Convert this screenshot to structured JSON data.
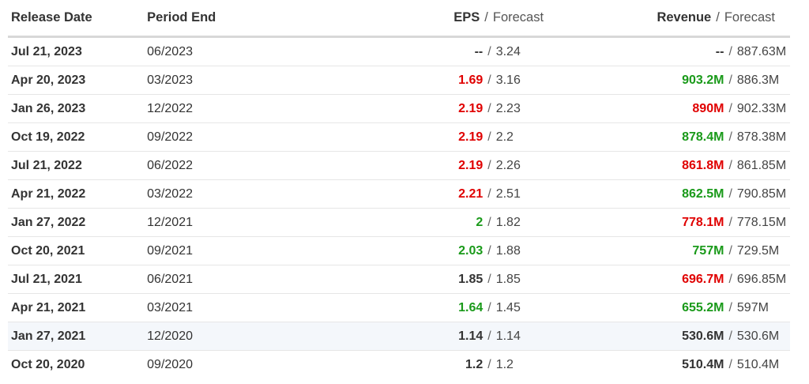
{
  "columns": {
    "release_date": "Release Date",
    "period_end": "Period End",
    "eps": "EPS",
    "revenue": "Revenue",
    "separator": "/",
    "forecast": "Forecast"
  },
  "colors": {
    "beat": "#1a9a1a",
    "miss": "#e00000",
    "neutral": "#333333",
    "highlight_row": "#f4f7fb"
  },
  "rows": [
    {
      "release_date": "Jul 21, 2023",
      "period_end": "06/2023",
      "eps_actual": "--",
      "eps_forecast": "3.24",
      "eps_status": "neutral",
      "rev_actual": "--",
      "rev_forecast": "887.63M",
      "rev_status": "neutral",
      "highlight": false
    },
    {
      "release_date": "Apr 20, 2023",
      "period_end": "03/2023",
      "eps_actual": "1.69",
      "eps_forecast": "3.16",
      "eps_status": "miss",
      "rev_actual": "903.2M",
      "rev_forecast": "886.3M",
      "rev_status": "beat",
      "highlight": false
    },
    {
      "release_date": "Jan 26, 2023",
      "period_end": "12/2022",
      "eps_actual": "2.19",
      "eps_forecast": "2.23",
      "eps_status": "miss",
      "rev_actual": "890M",
      "rev_forecast": "902.33M",
      "rev_status": "miss",
      "highlight": false
    },
    {
      "release_date": "Oct 19, 2022",
      "period_end": "09/2022",
      "eps_actual": "2.19",
      "eps_forecast": "2.2",
      "eps_status": "miss",
      "rev_actual": "878.4M",
      "rev_forecast": "878.38M",
      "rev_status": "beat",
      "highlight": false
    },
    {
      "release_date": "Jul 21, 2022",
      "period_end": "06/2022",
      "eps_actual": "2.19",
      "eps_forecast": "2.26",
      "eps_status": "miss",
      "rev_actual": "861.8M",
      "rev_forecast": "861.85M",
      "rev_status": "miss",
      "highlight": false
    },
    {
      "release_date": "Apr 21, 2022",
      "period_end": "03/2022",
      "eps_actual": "2.21",
      "eps_forecast": "2.51",
      "eps_status": "miss",
      "rev_actual": "862.5M",
      "rev_forecast": "790.85M",
      "rev_status": "beat",
      "highlight": false
    },
    {
      "release_date": "Jan 27, 2022",
      "period_end": "12/2021",
      "eps_actual": "2",
      "eps_forecast": "1.82",
      "eps_status": "beat",
      "rev_actual": "778.1M",
      "rev_forecast": "778.15M",
      "rev_status": "miss",
      "highlight": false
    },
    {
      "release_date": "Oct 20, 2021",
      "period_end": "09/2021",
      "eps_actual": "2.03",
      "eps_forecast": "1.88",
      "eps_status": "beat",
      "rev_actual": "757M",
      "rev_forecast": "729.5M",
      "rev_status": "beat",
      "highlight": false
    },
    {
      "release_date": "Jul 21, 2021",
      "period_end": "06/2021",
      "eps_actual": "1.85",
      "eps_forecast": "1.85",
      "eps_status": "neutral",
      "rev_actual": "696.7M",
      "rev_forecast": "696.85M",
      "rev_status": "miss",
      "highlight": false
    },
    {
      "release_date": "Apr 21, 2021",
      "period_end": "03/2021",
      "eps_actual": "1.64",
      "eps_forecast": "1.45",
      "eps_status": "beat",
      "rev_actual": "655.2M",
      "rev_forecast": "597M",
      "rev_status": "beat",
      "highlight": false
    },
    {
      "release_date": "Jan 27, 2021",
      "period_end": "12/2020",
      "eps_actual": "1.14",
      "eps_forecast": "1.14",
      "eps_status": "neutral",
      "rev_actual": "530.6M",
      "rev_forecast": "530.6M",
      "rev_status": "neutral",
      "highlight": true
    },
    {
      "release_date": "Oct 20, 2020",
      "period_end": "09/2020",
      "eps_actual": "1.2",
      "eps_forecast": "1.2",
      "eps_status": "neutral",
      "rev_actual": "510.4M",
      "rev_forecast": "510.4M",
      "rev_status": "neutral",
      "highlight": false
    }
  ]
}
